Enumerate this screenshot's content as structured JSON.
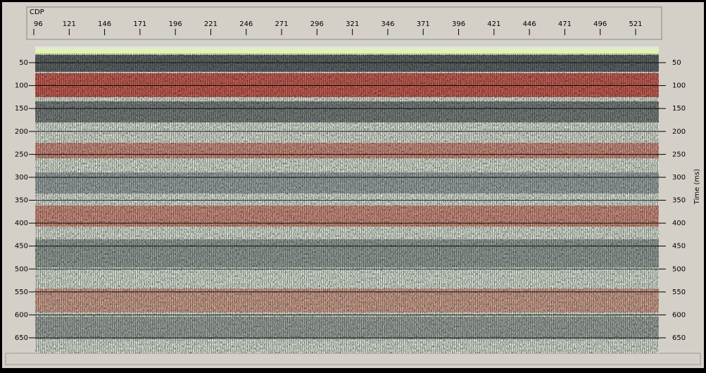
{
  "top_axis": {
    "label": "CDP",
    "ticks": [
      96,
      121,
      146,
      171,
      196,
      221,
      246,
      271,
      296,
      321,
      346,
      371,
      396,
      421,
      446,
      471,
      496,
      521
    ]
  },
  "left_axis": {
    "ticks": [
      50,
      100,
      150,
      200,
      250,
      300,
      350,
      400,
      450,
      500,
      550,
      600,
      650
    ]
  },
  "right_axis": {
    "label": "Time (ms)",
    "ticks": [
      50,
      100,
      150,
      200,
      250,
      300,
      350,
      400,
      450,
      500,
      550,
      600,
      650
    ]
  }
}
